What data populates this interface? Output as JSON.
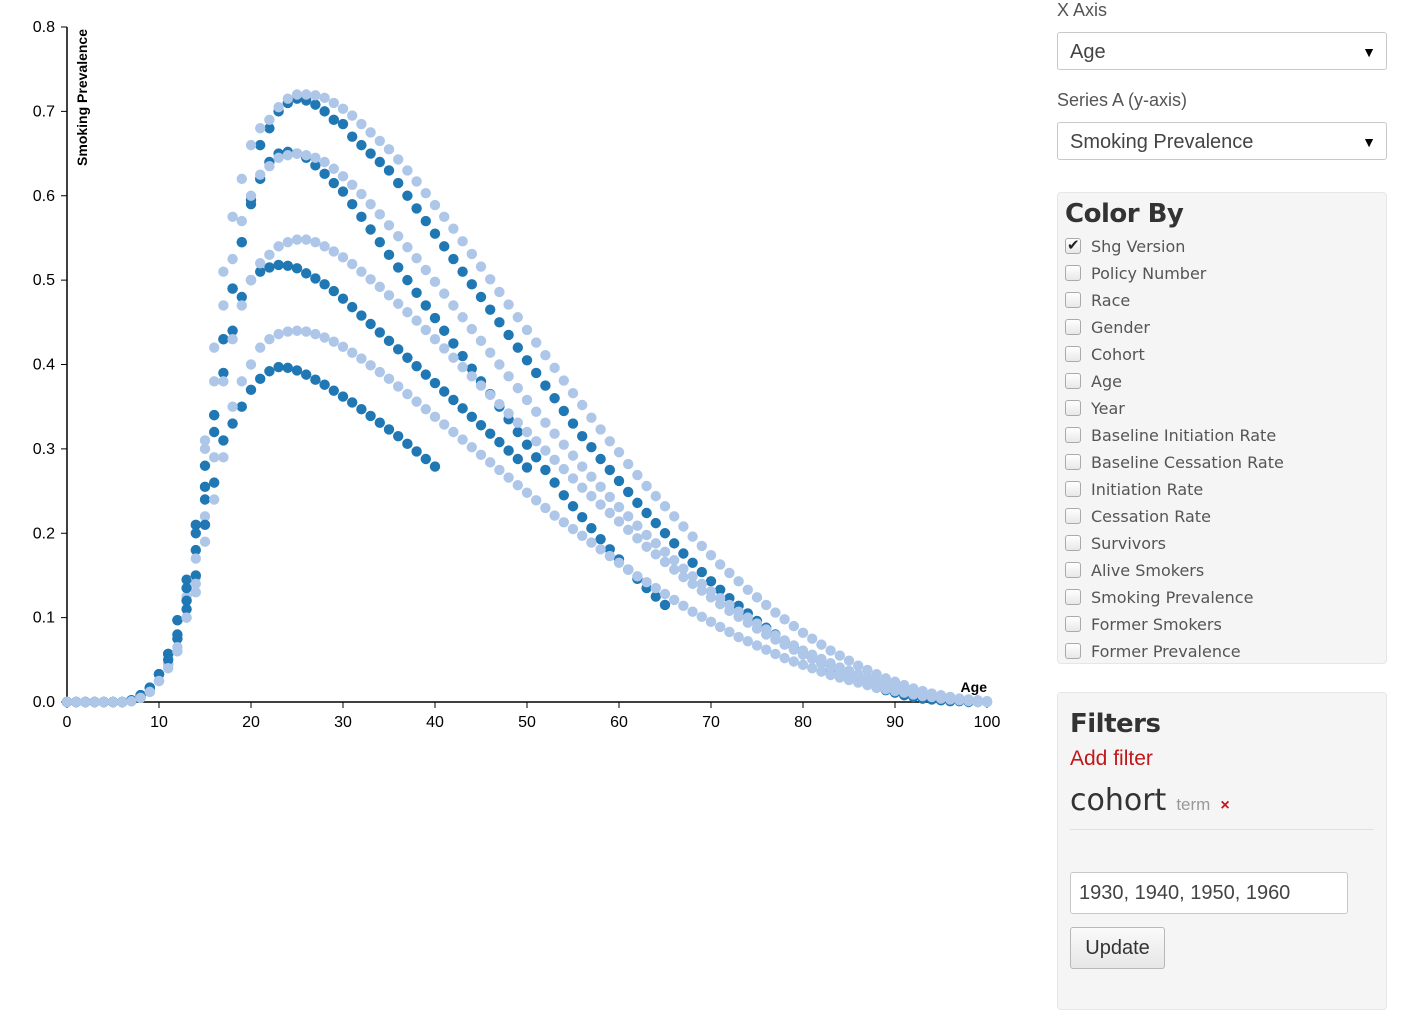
{
  "colors": {
    "series_a": "#1f77b4",
    "series_b": "#aec7e8",
    "accent_red": "#c0181a"
  },
  "chart_data": {
    "type": "scatter",
    "xlabel": "Age",
    "ylabel": "Smoking Prevalence",
    "xlim": [
      0,
      100
    ],
    "ylim": [
      0,
      0.8
    ],
    "x_ticks": [
      "0",
      "10",
      "20",
      "30",
      "40",
      "50",
      "60",
      "70",
      "80",
      "90",
      "100"
    ],
    "y_ticks": [
      "0.0",
      "0.1",
      "0.2",
      "0.3",
      "0.4",
      "0.5",
      "0.6",
      "0.7",
      "0.8"
    ],
    "x_values": [
      0,
      1,
      2,
      3,
      4,
      5,
      6,
      7,
      8,
      9,
      10,
      11,
      12,
      13,
      14,
      15,
      16,
      17,
      18,
      19,
      20,
      21,
      22,
      23,
      24,
      25,
      26,
      27,
      28,
      29,
      30,
      31,
      32,
      33,
      34,
      35,
      36,
      37,
      38,
      39,
      40,
      41,
      42,
      43,
      44,
      45,
      46,
      47,
      48,
      49,
      50,
      51,
      52,
      53,
      54,
      55,
      56,
      57,
      58,
      59,
      60,
      61,
      62,
      63,
      64,
      65,
      66,
      67,
      68,
      69,
      70,
      71,
      72,
      73,
      74,
      75,
      76,
      77,
      78,
      79,
      80,
      81,
      82,
      83,
      84,
      85,
      86,
      87,
      88,
      89,
      90,
      91,
      92,
      93,
      94,
      95,
      96,
      97,
      98,
      99,
      100
    ],
    "series": [
      {
        "color": "#1f77b4",
        "values": [
          0,
          0,
          0,
          0,
          0,
          0,
          0,
          0.002,
          0.008,
          0.017,
          0.033,
          0.057,
          0.097,
          0.145,
          0.21,
          0.255,
          0.34,
          0.43,
          0.49,
          0.545,
          0.595,
          0.66,
          0.68,
          0.7,
          0.71,
          0.715,
          0.713,
          0.708,
          0.7,
          0.69,
          0.685,
          0.67,
          0.66,
          0.65,
          0.64,
          0.63,
          0.615,
          0.6,
          0.585,
          0.57,
          0.555,
          0.54,
          0.525,
          0.51,
          0.495,
          0.48,
          0.465,
          0.45,
          0.435,
          0.42,
          0.405,
          0.39,
          0.375,
          0.36,
          0.345,
          0.33,
          0.315,
          0.302,
          0.288,
          0.275,
          0.262,
          0.249,
          0.236,
          0.224,
          0.212,
          0.2,
          0.188,
          0.176,
          0.165,
          0.154,
          0.143,
          0.133,
          0.123,
          0.114,
          0.105,
          0.096,
          0.088,
          0.08,
          0.072,
          0.065,
          0.058,
          0.052,
          0.046,
          0.04,
          0.035,
          0.03,
          0.025,
          0.021,
          0.017,
          0.014,
          0.011,
          0.008,
          0.006,
          0.004,
          0.003,
          0.002,
          0.001,
          0.001,
          0,
          0,
          0
        ]
      },
      {
        "color": "#aec7e8",
        "values": [
          0,
          0,
          0,
          0,
          0,
          0,
          0,
          0.001,
          0.005,
          0.012,
          0.025,
          0.045,
          0.075,
          0.125,
          0.148,
          0.31,
          0.42,
          0.51,
          0.575,
          0.62,
          0.66,
          0.68,
          0.69,
          0.705,
          0.715,
          0.72,
          0.72,
          0.719,
          0.716,
          0.71,
          0.703,
          0.695,
          0.685,
          0.675,
          0.665,
          0.655,
          0.643,
          0.63,
          0.617,
          0.603,
          0.589,
          0.575,
          0.561,
          0.546,
          0.531,
          0.516,
          0.501,
          0.486,
          0.471,
          0.456,
          0.441,
          0.426,
          0.411,
          0.396,
          0.381,
          0.366,
          0.352,
          0.337,
          0.323,
          0.309,
          0.296,
          0.282,
          0.269,
          0.256,
          0.244,
          0.232,
          0.22,
          0.208,
          0.196,
          0.185,
          0.174,
          0.163,
          0.153,
          0.143,
          0.133,
          0.124,
          0.115,
          0.106,
          0.098,
          0.09,
          0.082,
          0.075,
          0.068,
          0.061,
          0.055,
          0.049,
          0.043,
          0.038,
          0.033,
          0.028,
          0.024,
          0.02,
          0.016,
          0.013,
          0.01,
          0.008,
          0.006,
          0.004,
          0.003,
          0.002,
          0.001
        ]
      },
      {
        "color": "#1f77b4",
        "values": [
          0,
          0,
          0,
          0,
          0,
          0,
          0,
          0.002,
          0.008,
          0.017,
          0.033,
          0.057,
          0.097,
          0.135,
          0.2,
          0.28,
          0.34,
          0.43,
          0.49,
          0.545,
          0.59,
          0.62,
          0.64,
          0.65,
          0.652,
          0.65,
          0.645,
          0.636,
          0.626,
          0.615,
          0.605,
          0.59,
          0.575,
          0.56,
          0.545,
          0.53,
          0.515,
          0.5,
          0.485,
          0.47,
          0.455,
          0.44,
          0.425,
          0.41,
          0.395,
          0.38,
          0.365,
          0.35,
          0.335,
          0.32,
          0.305,
          0.29,
          0.275,
          0.26,
          0.245,
          0.232,
          0.219,
          0.206,
          0.193,
          0.181,
          0.169,
          0.157,
          0.146,
          0.135,
          0.125,
          0.115
        ]
      },
      {
        "color": "#aec7e8",
        "values": [
          0,
          0,
          0,
          0,
          0,
          0,
          0,
          0.001,
          0.005,
          0.012,
          0.025,
          0.045,
          0.075,
          0.12,
          0.13,
          0.3,
          0.38,
          0.47,
          0.525,
          0.57,
          0.6,
          0.625,
          0.635,
          0.645,
          0.648,
          0.65,
          0.648,
          0.645,
          0.64,
          0.632,
          0.623,
          0.613,
          0.602,
          0.59,
          0.578,
          0.565,
          0.552,
          0.539,
          0.526,
          0.512,
          0.498,
          0.484,
          0.47,
          0.456,
          0.442,
          0.428,
          0.414,
          0.4,
          0.386,
          0.372,
          0.358,
          0.344,
          0.331,
          0.318,
          0.305,
          0.292,
          0.279,
          0.267,
          0.255,
          0.243,
          0.231,
          0.22,
          0.209,
          0.198,
          0.188,
          0.178,
          0.168,
          0.158,
          0.149,
          0.14,
          0.131,
          0.123,
          0.115,
          0.107,
          0.1,
          0.093,
          0.086,
          0.079,
          0.073,
          0.067,
          0.061,
          0.056,
          0.051,
          0.046,
          0.041,
          0.037,
          0.033,
          0.029,
          0.025,
          0.022,
          0.019,
          0.016,
          0.013,
          0.011,
          0.009,
          0.007,
          0.005,
          0.004,
          0.003,
          0.002,
          0.001
        ]
      },
      {
        "color": "#1f77b4",
        "values": [
          0,
          0,
          0,
          0,
          0,
          0,
          0,
          0.002,
          0.008,
          0.017,
          0.033,
          0.057,
          0.08,
          0.12,
          0.18,
          0.24,
          0.32,
          0.39,
          0.44,
          0.48,
          0.5,
          0.51,
          0.515,
          0.518,
          0.517,
          0.514,
          0.508,
          0.502,
          0.495,
          0.487,
          0.478,
          0.468,
          0.458,
          0.448,
          0.438,
          0.428,
          0.418,
          0.408,
          0.398,
          0.388,
          0.378,
          0.368,
          0.358,
          0.348,
          0.338,
          0.328,
          0.318,
          0.308,
          0.298,
          0.288,
          0.278
        ]
      },
      {
        "color": "#aec7e8",
        "values": [
          0,
          0,
          0,
          0,
          0,
          0,
          0,
          0.001,
          0.005,
          0.012,
          0.025,
          0.045,
          0.06,
          0.1,
          0.17,
          0.22,
          0.29,
          0.38,
          0.43,
          0.47,
          0.5,
          0.52,
          0.53,
          0.54,
          0.545,
          0.548,
          0.548,
          0.545,
          0.54,
          0.534,
          0.527,
          0.519,
          0.51,
          0.501,
          0.492,
          0.482,
          0.472,
          0.462,
          0.452,
          0.441,
          0.43,
          0.419,
          0.408,
          0.397,
          0.386,
          0.375,
          0.364,
          0.353,
          0.342,
          0.331,
          0.32,
          0.309,
          0.298,
          0.287,
          0.276,
          0.265,
          0.254,
          0.244,
          0.234,
          0.224,
          0.214,
          0.204,
          0.194,
          0.184,
          0.175,
          0.166,
          0.157,
          0.148,
          0.14,
          0.132,
          0.124,
          0.116,
          0.108,
          0.101,
          0.094,
          0.087,
          0.08,
          0.074,
          0.068,
          0.062,
          0.056,
          0.051,
          0.046,
          0.041,
          0.036,
          0.032,
          0.028,
          0.024,
          0.021,
          0.018,
          0.015,
          0.012,
          0.01,
          0.008,
          0.006,
          0.004,
          0.003,
          0.002,
          0.001,
          0,
          0
        ]
      },
      {
        "color": "#1f77b4",
        "values": [
          0,
          0,
          0,
          0,
          0,
          0,
          0,
          0.002,
          0.008,
          0.017,
          0.033,
          0.05,
          0.075,
          0.11,
          0.15,
          0.21,
          0.26,
          0.31,
          0.33,
          0.35,
          0.37,
          0.383,
          0.392,
          0.397,
          0.396,
          0.393,
          0.388,
          0.382,
          0.376,
          0.369,
          0.362,
          0.355,
          0.347,
          0.339,
          0.331,
          0.323,
          0.315,
          0.306,
          0.297,
          0.288,
          0.279
        ]
      },
      {
        "color": "#aec7e8",
        "values": [
          0,
          0,
          0,
          0,
          0,
          0,
          0,
          0.001,
          0.005,
          0.012,
          0.025,
          0.04,
          0.065,
          0.1,
          0.14,
          0.19,
          0.24,
          0.29,
          0.35,
          0.38,
          0.4,
          0.42,
          0.43,
          0.436,
          0.439,
          0.44,
          0.439,
          0.436,
          0.432,
          0.427,
          0.421,
          0.414,
          0.407,
          0.399,
          0.391,
          0.383,
          0.374,
          0.365,
          0.356,
          0.347,
          0.338,
          0.329,
          0.32,
          0.311,
          0.302,
          0.293,
          0.284,
          0.275,
          0.266,
          0.257,
          0.248,
          0.239,
          0.23,
          0.221,
          0.213,
          0.205,
          0.197,
          0.189,
          0.181,
          0.173,
          0.165,
          0.157,
          0.149,
          0.142,
          0.135,
          0.128,
          0.121,
          0.114,
          0.107,
          0.101,
          0.095,
          0.089,
          0.083,
          0.077,
          0.072,
          0.067,
          0.062,
          0.057,
          0.052,
          0.048,
          0.044,
          0.04,
          0.036,
          0.032,
          0.029,
          0.026,
          0.023,
          0.02,
          0.017,
          0.015,
          0.013,
          0.011,
          0.009,
          0.007,
          0.006,
          0.005,
          0.004,
          0.003,
          0.002,
          0.001,
          0
        ]
      }
    ]
  },
  "controls": {
    "x_axis_label": "X Axis",
    "x_axis_value": "Age",
    "series_a_label": "Series A (y-axis)",
    "series_a_value": "Smoking Prevalence"
  },
  "color_by": {
    "title": "Color By",
    "items": [
      {
        "label": "Shg Version",
        "checked": true
      },
      {
        "label": "Policy Number",
        "checked": false
      },
      {
        "label": "Race",
        "checked": false
      },
      {
        "label": "Gender",
        "checked": false
      },
      {
        "label": "Cohort",
        "checked": false
      },
      {
        "label": "Age",
        "checked": false
      },
      {
        "label": "Year",
        "checked": false
      },
      {
        "label": "Baseline Initiation Rate",
        "checked": false
      },
      {
        "label": "Baseline Cessation Rate",
        "checked": false
      },
      {
        "label": "Initiation Rate",
        "checked": false
      },
      {
        "label": "Cessation Rate",
        "checked": false
      },
      {
        "label": "Survivors",
        "checked": false
      },
      {
        "label": "Alive Smokers",
        "checked": false
      },
      {
        "label": "Smoking Prevalence",
        "checked": false
      },
      {
        "label": "Former Smokers",
        "checked": false
      },
      {
        "label": "Former Prevalence",
        "checked": false
      }
    ]
  },
  "filters": {
    "title": "Filters",
    "add_label": "Add filter",
    "active": {
      "name": "cohort",
      "type": "term",
      "remove_icon": "×"
    },
    "input_value": "1930, 1940, 1950, 1960",
    "update_label": "Update"
  }
}
